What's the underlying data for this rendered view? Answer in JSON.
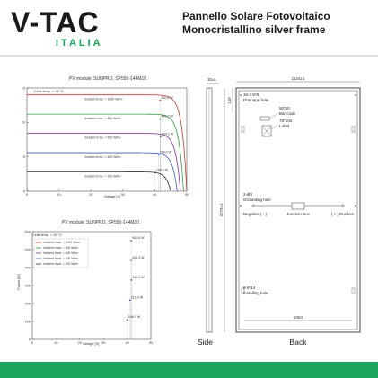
{
  "brand": {
    "logo_text": "V-TAC",
    "logo_subtext": "ITALIA",
    "accent": "#1ba35a",
    "dark": "#1a1a1a"
  },
  "title": {
    "line1": "Pannello Solare Fotovoltaico",
    "line2": "Monocristallino silver frame"
  },
  "chart_data": [
    {
      "type": "line",
      "title": "PV module:   SUNPRO,   SP550-144M10",
      "annotation": "Cells temp. = 25 °C",
      "xlabel": "Voltage [V]",
      "ylabel": "",
      "xlim": [
        0,
        50
      ],
      "ylim": [
        0,
        15
      ],
      "xticks": [
        "0",
        "10",
        "20",
        "30",
        "40",
        "50"
      ],
      "yticks": [
        "0",
        "5",
        "10",
        "15"
      ],
      "grid": false,
      "series": [
        {
          "name": "Incident Irrad. = 1000 W/m²",
          "isc": 14.0,
          "voc": 50,
          "mpp_v": 41.7,
          "mpp_i": 13.2,
          "power_label": "550.6 W",
          "color": "#c0392b"
        },
        {
          "name": "Incident Irrad. = 800 W/m²",
          "isc": 11.2,
          "voc": 49,
          "mpp_v": 41.7,
          "mpp_i": 10.5,
          "power_label": "440.2 W",
          "color": "#2e9e3f"
        },
        {
          "name": "Incident Irrad. = 600 W/m²",
          "isc": 8.4,
          "voc": 48,
          "mpp_v": 41.8,
          "mpp_i": 7.9,
          "power_label": "330.2 W",
          "color": "#8a2d9a"
        },
        {
          "name": "Incident Irrad. = 400 W/m²",
          "isc": 5.6,
          "voc": 47,
          "mpp_v": 41.2,
          "mpp_i": 5.3,
          "power_label": "218.0 W",
          "color": "#3559c4"
        },
        {
          "name": "Incident Irrad. = 200 W/m²",
          "isc": 2.8,
          "voc": 45,
          "mpp_v": 40.1,
          "mpp_i": 2.7,
          "power_label": "108.9 W",
          "color": "#2a2a2a"
        }
      ]
    },
    {
      "type": "line",
      "title": "PV module:   SUNPRO,   SP550-144M10",
      "annotation": "Cells temp. = 25 °C",
      "xlabel": "Voltage [V]",
      "ylabel": "Power [W]",
      "xlim": [
        0,
        50
      ],
      "ylim": [
        0,
        600
      ],
      "xticks": [
        "0",
        "10",
        "20",
        "30",
        "40",
        "50"
      ],
      "yticks": [
        "0",
        "100",
        "200",
        "300",
        "400",
        "500",
        "600"
      ],
      "grid": false,
      "series": [
        {
          "name": "Incident Irrad. = 1000 W/m²",
          "voc": 50,
          "mpp_v": 41.7,
          "mpp_p": 550.6,
          "power_label": "550.6 W",
          "color": "#c0392b"
        },
        {
          "name": "Incident Irrad. = 800 W/m²",
          "voc": 49,
          "mpp_v": 41.7,
          "mpp_p": 440.2,
          "power_label": "440.2 W",
          "color": "#2e9e3f"
        },
        {
          "name": "Incident Irrad. = 600 W/m²",
          "voc": 48,
          "mpp_v": 41.8,
          "mpp_p": 330.2,
          "power_label": "330.2 W",
          "color": "#8a2d9a"
        },
        {
          "name": "Incident Irrad. = 400 W/m²",
          "voc": 47,
          "mpp_v": 41.2,
          "mpp_p": 218.0,
          "power_label": "218.0 W",
          "color": "#3559c4"
        },
        {
          "name": "Incident Irrad. = 200 W/m²",
          "voc": 45,
          "mpp_v": 40.1,
          "mpp_p": 108.9,
          "power_label": "108.9 W",
          "color": "#2a2a2a"
        }
      ]
    }
  ],
  "drawing": {
    "dim_top_small": "30±1",
    "dim_width": "1134±1",
    "dim_height": "2279±1",
    "dim_upper": "149",
    "dim_inner": "1084",
    "drainage": {
      "code": "16-3.5*8",
      "label": "Drainage hole"
    },
    "barcode": {
      "code": "50*10",
      "label": "Bar code"
    },
    "labelbox": {
      "code": "76*102",
      "label": "Label"
    },
    "grounding": {
      "code": "2-Ø4",
      "label": "Grounding hole"
    },
    "negative": "Negative ( - )",
    "junction": "Junction Box",
    "positive": "( + ) Positive",
    "installing": {
      "code": "8-9*14",
      "label": "Installing hole"
    },
    "side_label": "Side",
    "back_label": "Back"
  }
}
